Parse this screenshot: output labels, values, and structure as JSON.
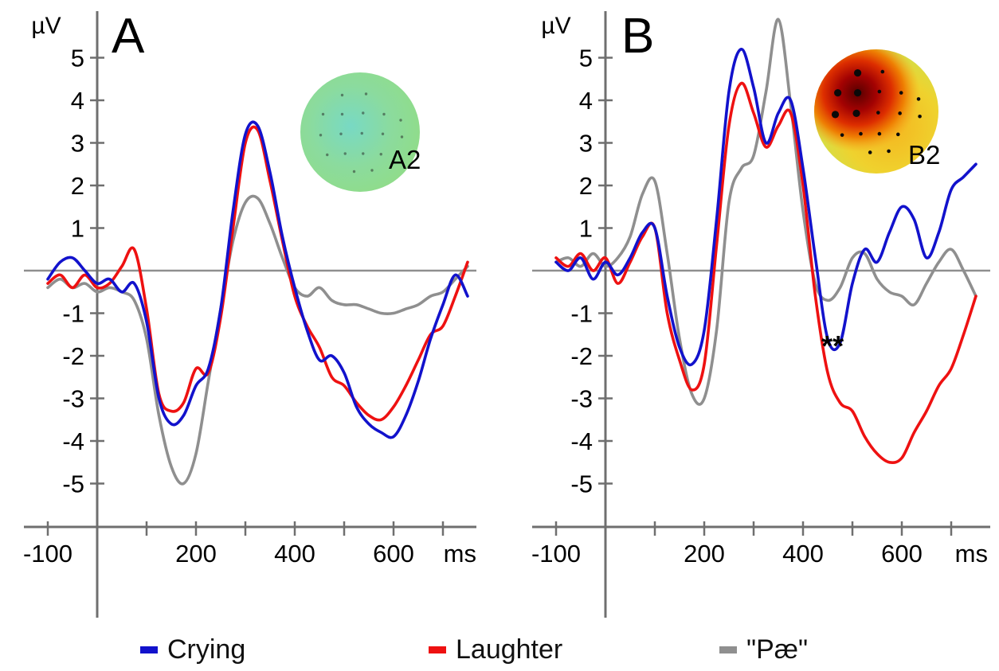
{
  "figure": {
    "description": "ERP grand-average waveforms, two panels with scalp topography insets",
    "x_axis_unit": "ms",
    "y_axis_unit": "µV"
  },
  "legend": {
    "items": [
      {
        "label": "Crying",
        "color": "#1212cc"
      },
      {
        "label": "Laughter",
        "color": "#ee1111"
      },
      {
        "label": "\"Pæ\"",
        "color": "#8f8f8f"
      }
    ]
  },
  "chart_data": [
    {
      "type": "line",
      "panel_label": "A",
      "xlabel": "ms",
      "ylabel": "µV",
      "xlim": [
        -130,
        780
      ],
      "ylim": [
        -5.5,
        5.5
      ],
      "y_ticks": [
        5,
        4,
        3,
        2,
        1,
        -1,
        -2,
        -3,
        -4,
        -5
      ],
      "x_tick_step": 100,
      "x_ticks_labeled": [
        -100,
        200,
        400,
        600
      ],
      "x": [
        -100,
        -75,
        -50,
        -25,
        0,
        25,
        50,
        75,
        100,
        125,
        150,
        175,
        200,
        225,
        250,
        275,
        300,
        325,
        350,
        375,
        400,
        425,
        450,
        475,
        500,
        525,
        550,
        575,
        600,
        625,
        650,
        675,
        700,
        725,
        750
      ],
      "series": [
        {
          "name": "Crying",
          "color": "#1212cc",
          "values": [
            -0.2,
            0.2,
            0.3,
            0.0,
            -0.3,
            -0.2,
            -0.5,
            -0.3,
            -1.2,
            -3.0,
            -3.6,
            -3.4,
            -2.7,
            -2.3,
            -0.9,
            1.4,
            3.2,
            3.4,
            2.3,
            0.8,
            -0.4,
            -1.4,
            -2.1,
            -2.0,
            -2.4,
            -3.2,
            -3.6,
            -3.8,
            -3.9,
            -3.4,
            -2.6,
            -1.6,
            -0.8,
            -0.1,
            -0.6
          ]
        },
        {
          "name": "Laughter",
          "color": "#ee1111",
          "values": [
            -0.3,
            -0.1,
            -0.4,
            -0.1,
            -0.4,
            -0.3,
            0.1,
            0.5,
            -0.9,
            -2.9,
            -3.3,
            -3.1,
            -2.3,
            -2.4,
            -1.1,
            1.0,
            3.0,
            3.3,
            2.1,
            0.7,
            -0.6,
            -1.3,
            -1.8,
            -2.5,
            -2.7,
            -3.1,
            -3.4,
            -3.5,
            -3.2,
            -2.7,
            -2.1,
            -1.5,
            -1.3,
            -0.6,
            0.2
          ]
        },
        {
          "name": "\"Pæ\"",
          "color": "#8f8f8f",
          "values": [
            -0.4,
            -0.2,
            -0.4,
            -0.3,
            -0.5,
            -0.4,
            -0.5,
            -0.7,
            -1.6,
            -3.4,
            -4.6,
            -5.0,
            -4.3,
            -2.6,
            -0.9,
            0.7,
            1.6,
            1.7,
            1.1,
            0.3,
            -0.4,
            -0.6,
            -0.4,
            -0.7,
            -0.8,
            -0.8,
            -0.9,
            -1.0,
            -1.0,
            -0.9,
            -0.8,
            -0.6,
            -0.5,
            -0.2,
            0.1
          ]
        }
      ],
      "inset": {
        "label": "A2",
        "description": "topographic scalp map, uniform green-cyan, no significant cluster"
      },
      "annotations": []
    },
    {
      "type": "line",
      "panel_label": "B",
      "xlabel": "ms",
      "ylabel": "µV",
      "xlim": [
        -130,
        780
      ],
      "ylim": [
        -5.5,
        6.0
      ],
      "y_ticks": [
        5,
        4,
        3,
        2,
        1,
        -1,
        -2,
        -3,
        -4,
        -5
      ],
      "x_tick_step": 100,
      "x_ticks_labeled": [
        -100,
        200,
        400,
        600
      ],
      "x": [
        -100,
        -75,
        -50,
        -25,
        0,
        25,
        50,
        75,
        100,
        125,
        150,
        175,
        200,
        225,
        250,
        275,
        300,
        325,
        350,
        375,
        400,
        425,
        450,
        475,
        500,
        525,
        550,
        575,
        600,
        625,
        650,
        675,
        700,
        725,
        750
      ],
      "series": [
        {
          "name": "Crying",
          "color": "#1212cc",
          "values": [
            0.2,
            0.0,
            0.3,
            -0.2,
            0.2,
            -0.1,
            0.3,
            0.9,
            1.0,
            -0.6,
            -1.8,
            -2.2,
            -1.4,
            1.2,
            4.2,
            5.2,
            4.3,
            3.0,
            3.7,
            4.0,
            2.4,
            0.3,
            -1.6,
            -1.7,
            -0.3,
            0.5,
            0.2,
            0.9,
            1.5,
            1.2,
            0.3,
            0.9,
            1.9,
            2.2,
            2.5
          ]
        },
        {
          "name": "Laughter",
          "color": "#ee1111",
          "values": [
            0.3,
            0.1,
            0.4,
            0.0,
            0.3,
            -0.3,
            0.2,
            0.8,
            1.0,
            -1.0,
            -2.1,
            -2.8,
            -2.2,
            0.6,
            3.4,
            4.4,
            3.7,
            2.9,
            3.4,
            3.7,
            2.0,
            -0.6,
            -2.4,
            -3.1,
            -3.3,
            -3.9,
            -4.3,
            -4.5,
            -4.4,
            -3.8,
            -3.3,
            -2.7,
            -2.3,
            -1.5,
            -0.6
          ]
        },
        {
          "name": "\"Pæ\"",
          "color": "#8f8f8f",
          "values": [
            0.2,
            0.3,
            0.1,
            0.4,
            0.1,
            0.3,
            0.8,
            1.8,
            2.1,
            0.4,
            -1.6,
            -2.9,
            -3.0,
            -1.4,
            1.6,
            2.4,
            2.7,
            4.2,
            5.9,
            3.9,
            1.4,
            -0.3,
            -0.7,
            -0.4,
            0.3,
            0.4,
            -0.2,
            -0.5,
            -0.6,
            -0.8,
            -0.3,
            0.2,
            0.5,
            0.0,
            -0.6
          ]
        }
      ],
      "inset": {
        "label": "B2",
        "description": "topographic scalp map, red hot spot over left frontal electrodes"
      },
      "annotations": [
        {
          "text": "**",
          "x": 460,
          "y": -2.0
        }
      ]
    }
  ]
}
